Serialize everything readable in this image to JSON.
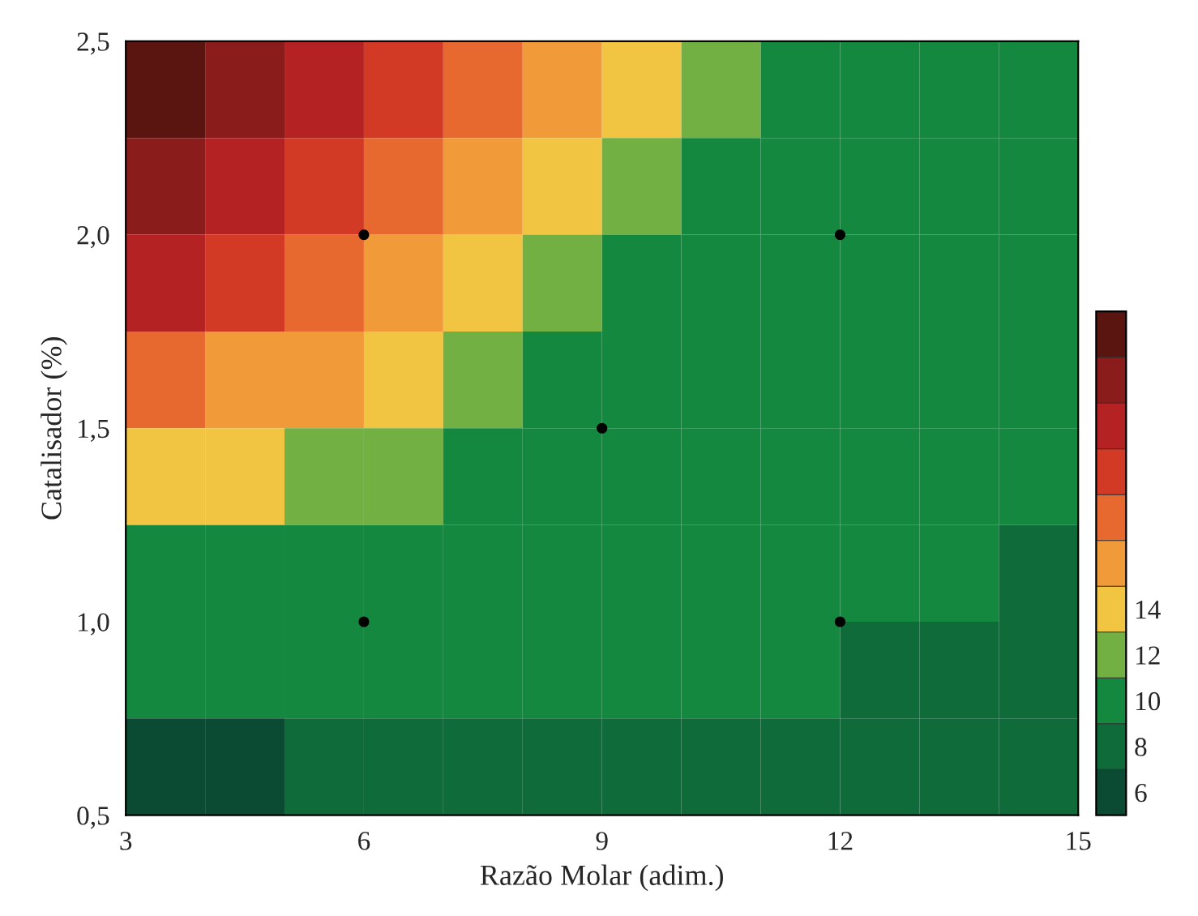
{
  "chart_data": {
    "type": "heatmap",
    "xlabel": "Razão Molar (adim.)",
    "ylabel": "Catalisador (%)",
    "xlim": [
      3,
      15
    ],
    "ylim": [
      0.5,
      2.5
    ],
    "xticks": [
      3,
      6,
      9,
      12,
      15
    ],
    "yticks": [
      {
        "value": 0.5,
        "label": "0,5"
      },
      {
        "value": 1.0,
        "label": "1,0"
      },
      {
        "value": 1.5,
        "label": "1,5"
      },
      {
        "value": 2.0,
        "label": "2,0"
      },
      {
        "value": 2.5,
        "label": "2,5"
      }
    ],
    "cells": [
      [
        26,
        24,
        22,
        20,
        18,
        16,
        14,
        12,
        10,
        10,
        10,
        10
      ],
      [
        24,
        22,
        20,
        18,
        16,
        14,
        12,
        10,
        10,
        10,
        10,
        10
      ],
      [
        22,
        20,
        18,
        16,
        14,
        12,
        10,
        10,
        10,
        10,
        10,
        10
      ],
      [
        18,
        16,
        16,
        14,
        12,
        10,
        10,
        10,
        10,
        10,
        10,
        10
      ],
      [
        14,
        14,
        12,
        12,
        10,
        10,
        10,
        10,
        10,
        10,
        10,
        10
      ],
      [
        10,
        10,
        10,
        10,
        10,
        10,
        10,
        10,
        10,
        10,
        10,
        8
      ],
      [
        10,
        10,
        10,
        10,
        10,
        10,
        10,
        10,
        10,
        8,
        8,
        8
      ],
      [
        6,
        6,
        8,
        8,
        8,
        8,
        8,
        8,
        8,
        8,
        8,
        8
      ]
    ],
    "clim": [
      5,
      27
    ],
    "cticks": [
      6,
      8,
      10,
      12,
      14
    ],
    "series": [
      {
        "type": "scatter",
        "color": "#000000",
        "x": [
          6,
          6,
          9,
          12,
          12
        ],
        "values": [
          2.0,
          1.0,
          1.5,
          2.0,
          1.0
        ]
      }
    ]
  }
}
